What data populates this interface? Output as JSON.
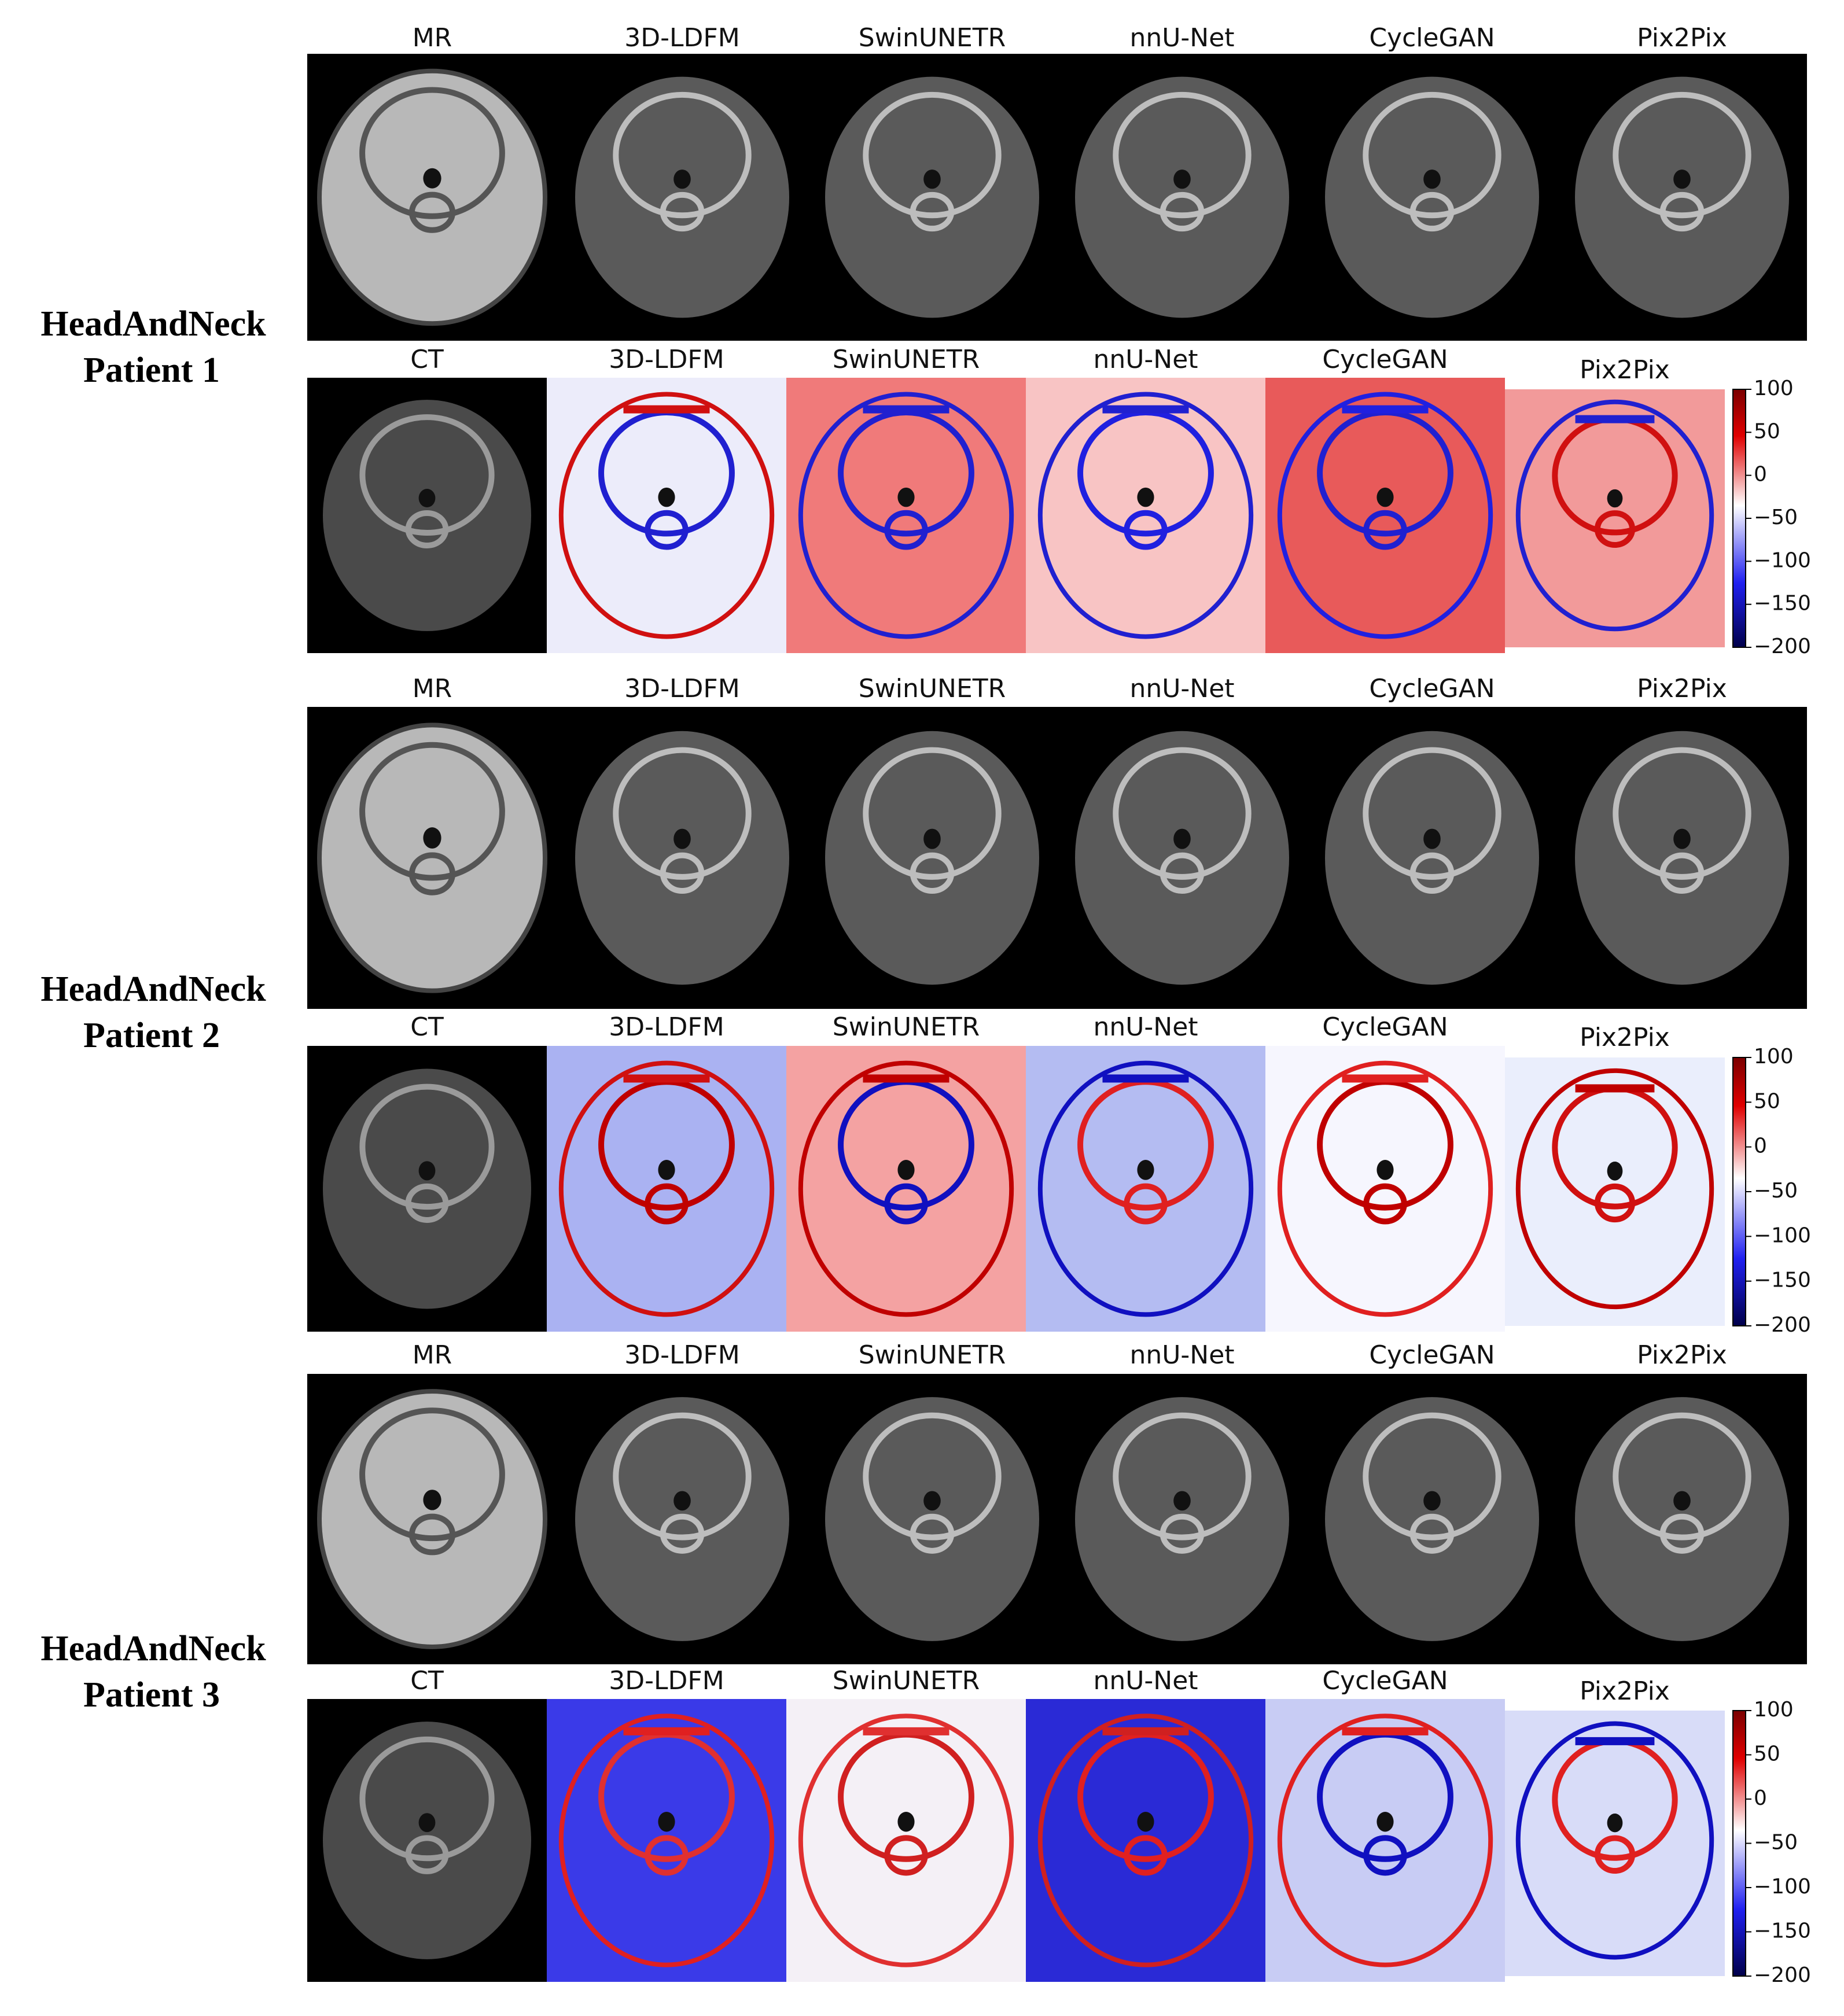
{
  "patients": [
    {
      "title": "HeadAndNeck",
      "subtitle": "Patient 1",
      "top_labels": [
        "MR",
        "3D-LDFM",
        "SwinUNETR",
        "nnU-Net",
        "CycleGAN",
        "Pix2Pix"
      ],
      "bottom_labels": [
        "CT",
        "3D-LDFM",
        "SwinUNETR",
        "nnU-Net",
        "CycleGAN",
        "Pix2Pix"
      ],
      "colorbar": {
        "range": [
          -200,
          100
        ],
        "ticks": [
          100,
          50,
          0,
          {
            "value": -50,
            "label": "−50"
          },
          {
            "value": -100,
            "label": "−100"
          },
          {
            "value": -150,
            "label": "−150"
          },
          {
            "value": -200,
            "label": "−200"
          }
        ]
      }
    },
    {
      "title": "HeadAndNeck",
      "subtitle": "Patient 2",
      "top_labels": [
        "MR",
        "3D-LDFM",
        "SwinUNETR",
        "nnU-Net",
        "CycleGAN",
        "Pix2Pix"
      ],
      "bottom_labels": [
        "CT",
        "3D-LDFM",
        "SwinUNETR",
        "nnU-Net",
        "CycleGAN",
        "Pix2Pix"
      ],
      "colorbar": {
        "range": [
          -200,
          100
        ],
        "ticks": [
          100,
          50,
          0,
          {
            "value": -50,
            "label": "−50"
          },
          {
            "value": -100,
            "label": "−100"
          },
          {
            "value": -150,
            "label": "−150"
          },
          {
            "value": -200,
            "label": "−200"
          }
        ]
      }
    },
    {
      "title": "HeadAndNeck",
      "subtitle": "Patient 3",
      "top_labels": [
        "MR",
        "3D-LDFM",
        "SwinUNETR",
        "nnU-Net",
        "CycleGAN",
        "Pix2Pix"
      ],
      "bottom_labels": [
        "CT",
        "3D-LDFM",
        "SwinUNETR",
        "nnU-Net",
        "CycleGAN",
        "Pix2Pix"
      ],
      "colorbar": {
        "range": [
          -200,
          100
        ],
        "ticks": [
          100,
          50,
          0,
          {
            "value": -50,
            "label": "−50"
          },
          {
            "value": -100,
            "label": "−100"
          },
          {
            "value": -150,
            "label": "−150"
          },
          {
            "value": -200,
            "label": "−200"
          }
        ]
      }
    }
  ]
}
